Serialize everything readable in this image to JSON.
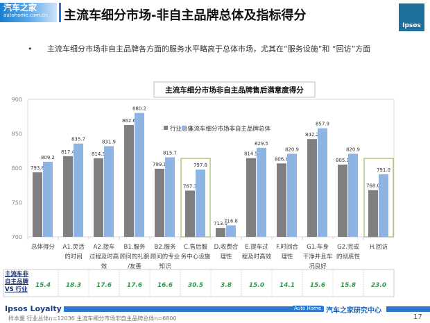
{
  "header": {
    "logo_cn": "汽车之家",
    "logo_url": "autohome.com.cn",
    "title": "主流车细分市场-非自主品牌总体及指标得分",
    "ipsos_logo": "Ipsos"
  },
  "bullet": "主流车细分市场非自主品牌各方面的服务水平略高于总体市场，尤其在“服务设施”和 “回访”方面",
  "chart_data": {
    "type": "bar",
    "title": "主流车细分市场非自主品牌售后满意度得分",
    "categories": [
      "总体得分",
      "A1.灵活的时间",
      "A2.接车过程及时高效",
      "B1.服务顾问的礼貌/友善",
      "B2.服务顾问的专业知识",
      "C.售后服务中心设施",
      "D.收费合理性",
      "E.提车过程及时高效",
      "F.时间合理性",
      "G1.车身干净并且车况良好",
      "G2.完成的彻底性",
      "H.回访"
    ],
    "series": [
      {
        "name": "行业总体",
        "color": "#7f7f7f",
        "values": [
          793.8,
          817.4,
          814.3,
          862.6,
          799.1,
          767.3,
          713.0,
          814.5,
          806.8,
          842.2,
          805.1,
          768.0
        ]
      },
      {
        "name": "主流车细分市场非自主品牌总体",
        "color": "#8db4e2",
        "values": [
          809.2,
          835.7,
          831.9,
          880.2,
          815.7,
          797.8,
          716.8,
          829.5,
          820.9,
          857.9,
          820.9,
          791.0
        ]
      }
    ],
    "ylim": [
      700,
      900
    ],
    "yticks": [
      700,
      750,
      800,
      850,
      900
    ],
    "legend": "top-right",
    "grid": false,
    "highlighted": [
      "C.售后服务中心设施",
      "H.回访"
    ]
  },
  "diff_row": {
    "label": [
      "主流车非",
      "自主品牌",
      "VS 行业"
    ],
    "values": [
      "15.4",
      "18.3",
      "17.6",
      "17.6",
      "16.6",
      "30.5",
      "3.8",
      "15.0",
      "14.1",
      "15.6",
      "15.8",
      "23.0"
    ]
  },
  "footer": {
    "brand": "Ipsos Loyalty",
    "autohome": "Auto Home",
    "center": "汽车之家研究中心",
    "sample": "样本量 行业总体n=12036 主流车细分市场非自主品牌总体n=6800",
    "page": "17"
  }
}
